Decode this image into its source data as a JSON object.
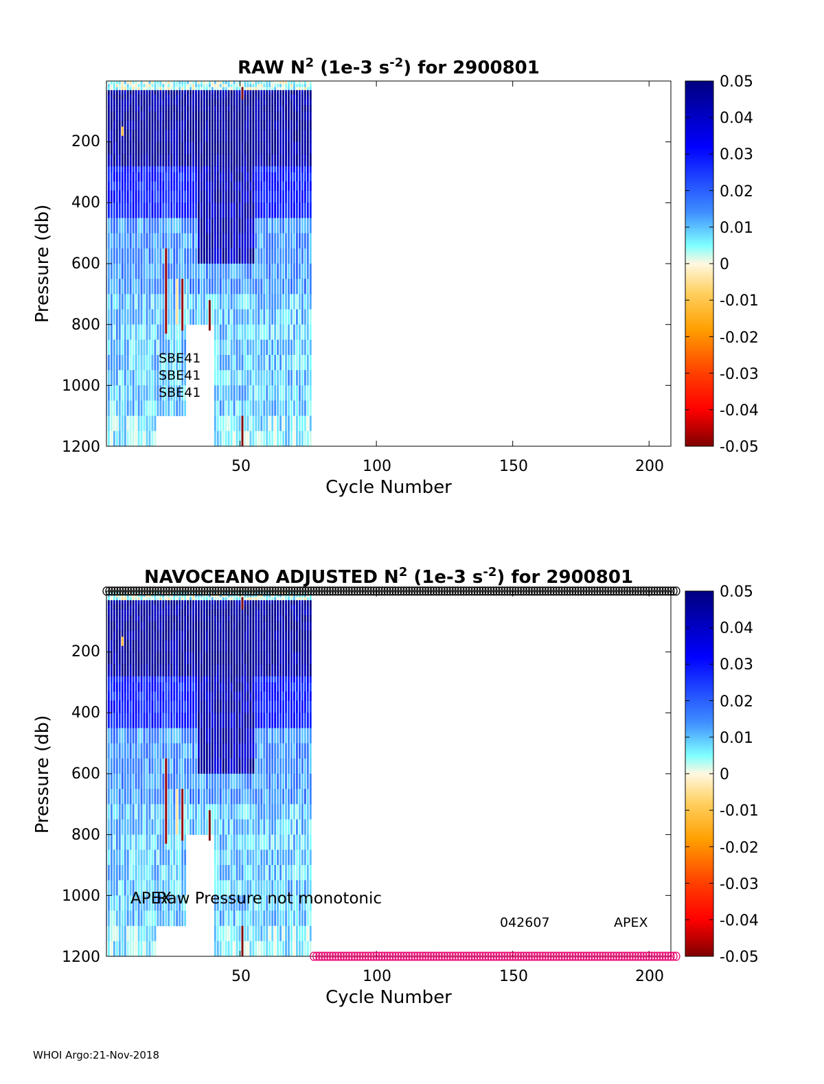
{
  "footer": "WHOI Argo:21-Nov-2018",
  "colorbar": {
    "ticks": [
      "0.05",
      "0.04",
      "0.03",
      "0.02",
      "0.01",
      "0",
      "-0.01",
      "-0.02",
      "-0.03",
      "-0.04",
      "-0.05"
    ],
    "range": [
      -0.05,
      0.05
    ]
  },
  "colors": {
    "axis": "#000000",
    "qc_marker_top": "#000000",
    "qc_marker_bottom": "#e8006e"
  },
  "chart_data": [
    {
      "type": "heatmap",
      "title_parts": [
        "RAW N",
        "2",
        " (1e-3 s",
        "-2",
        ") for 2900801"
      ],
      "xlabel": "Cycle Number",
      "ylabel": "Pressure (db)",
      "xlim": [
        1,
        208
      ],
      "ylim": [
        1200,
        0
      ],
      "y_reversed": true,
      "xticks": [
        "50",
        "100",
        "150",
        "200"
      ],
      "yticks": [
        "200",
        "400",
        "600",
        "800",
        "1000",
        "1200"
      ],
      "cycles_with_data": [
        1,
        76
      ],
      "annotations": [
        "SBE41",
        "SBE41",
        "SBE41"
      ]
    },
    {
      "type": "heatmap",
      "title_parts": [
        "NAVOCEANO  ADJUSTED N",
        "2",
        " (1e-3 s",
        "-2",
        ") for 2900801"
      ],
      "xlabel": "Cycle Number",
      "ylabel": "Pressure (db)",
      "xlim": [
        1,
        208
      ],
      "ylim": [
        1200,
        0
      ],
      "y_reversed": true,
      "xticks": [
        "50",
        "100",
        "150",
        "200"
      ],
      "yticks": [
        "200",
        "400",
        "600",
        "800",
        "1000",
        "1200"
      ],
      "cycles_with_data": [
        1,
        76
      ],
      "annotations": [
        "APEX",
        "Raw Pressure not monotonic",
        "042607",
        "APEX"
      ],
      "markers": [
        {
          "name": "qc-top",
          "pressure": 0,
          "cycles": [
            1,
            210
          ],
          "color": "#000000"
        },
        {
          "name": "qc-bottom",
          "pressure": 1200,
          "cycles": [
            77,
            210
          ],
          "color": "#e8006e"
        }
      ]
    }
  ]
}
